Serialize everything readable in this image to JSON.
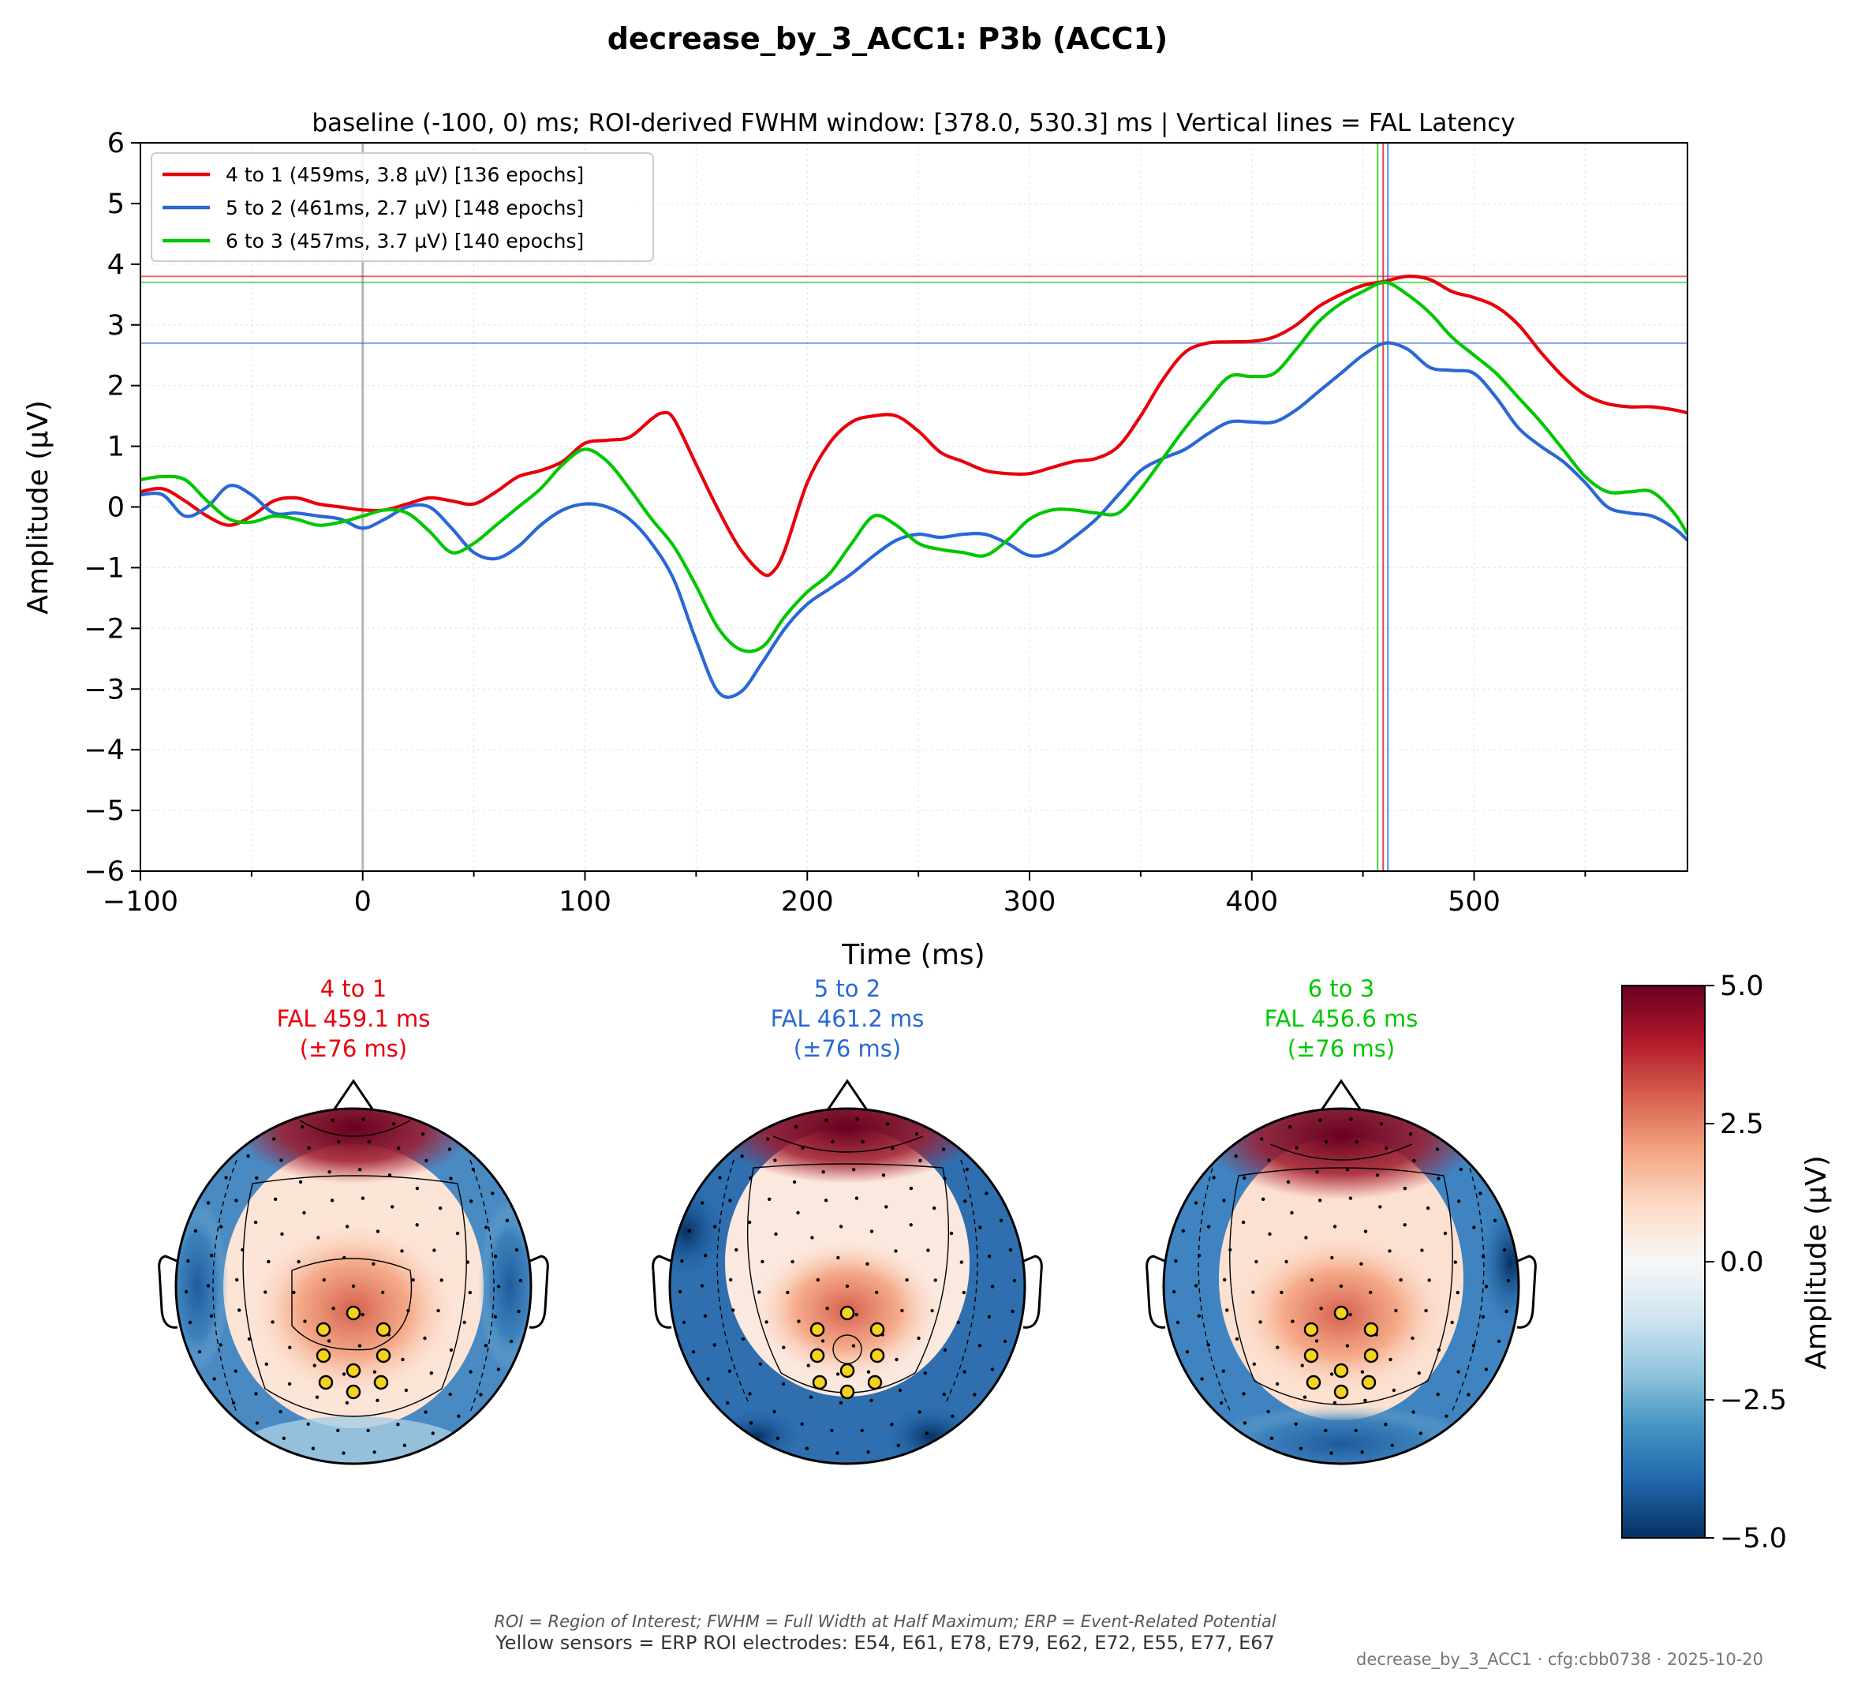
{
  "figure": {
    "suptitle": "decrease_by_3_ACC1: P3b (ACC1)",
    "footer_abbrev": "ROI = Region of Interest; FWHM = Full Width at Half Maximum; ERP = Event-Related Potential",
    "footer_roi": "Yellow sensors = ERP ROI electrodes: E54, E61, E78, E79, E62, E72, E55, E77, E67",
    "footer_meta": "decrease_by_3_ACC1 · cfg:cbb0738 · 2025-10-20"
  },
  "chart_data": [
    {
      "type": "line",
      "title": "baseline (-100, 0) ms; ROI-derived FWHM window: [378.0, 530.3] ms | Vertical lines = FAL Latency",
      "xlabel": "Time (ms)",
      "ylabel": "Amplitude (µV)",
      "xlim": [
        -100,
        596
      ],
      "ylim": [
        -6,
        6
      ],
      "xticks": [
        -100,
        0,
        100,
        200,
        300,
        400,
        500
      ],
      "xtick_labels": [
        "−100",
        "0",
        "100",
        "200",
        "300",
        "400",
        "500"
      ],
      "yticks": [
        -6,
        -5,
        -4,
        -3,
        -2,
        -1,
        0,
        1,
        2,
        3,
        4,
        5,
        6
      ],
      "ytick_labels": [
        "−6",
        "−5",
        "−4",
        "−3",
        "−2",
        "−1",
        "0",
        "1",
        "2",
        "3",
        "4",
        "5",
        "6"
      ],
      "grid": true,
      "legend_position": "upper-left",
      "baseline_marker_x": 0,
      "series": [
        {
          "name": "4 to 1 (459ms, 3.8 µV) [136 epochs]",
          "color": "#e8000b",
          "peak_latency": 459.1,
          "peak_amplitude": 3.8,
          "x": [
            -100,
            -90,
            -80,
            -70,
            -60,
            -50,
            -40,
            -30,
            -20,
            -10,
            0,
            10,
            20,
            30,
            40,
            50,
            60,
            70,
            80,
            90,
            100,
            110,
            120,
            130,
            135,
            140,
            150,
            160,
            170,
            180,
            185,
            190,
            200,
            210,
            220,
            230,
            240,
            250,
            260,
            270,
            280,
            290,
            300,
            310,
            320,
            330,
            340,
            350,
            360,
            370,
            380,
            390,
            400,
            410,
            420,
            430,
            440,
            450,
            460,
            470,
            480,
            490,
            500,
            510,
            520,
            530,
            540,
            550,
            560,
            570,
            580,
            590,
            596
          ],
          "y": [
            0.25,
            0.3,
            0.1,
            -0.15,
            -0.3,
            -0.15,
            0.1,
            0.15,
            0.05,
            0.0,
            -0.05,
            -0.05,
            0.05,
            0.15,
            0.1,
            0.05,
            0.25,
            0.5,
            0.6,
            0.75,
            1.05,
            1.1,
            1.15,
            1.45,
            1.55,
            1.45,
            0.7,
            -0.05,
            -0.7,
            -1.1,
            -1.05,
            -0.7,
            0.4,
            1.05,
            1.4,
            1.5,
            1.5,
            1.25,
            0.9,
            0.75,
            0.6,
            0.55,
            0.55,
            0.65,
            0.75,
            0.8,
            1.0,
            1.5,
            2.1,
            2.55,
            2.7,
            2.72,
            2.73,
            2.8,
            3.0,
            3.3,
            3.5,
            3.65,
            3.72,
            3.8,
            3.75,
            3.55,
            3.45,
            3.3,
            3.0,
            2.55,
            2.15,
            1.85,
            1.7,
            1.65,
            1.65,
            1.6,
            1.55
          ]
        },
        {
          "name": "5 to 2 (461ms, 2.7 µV) [148 epochs]",
          "color": "#2a67d7",
          "peak_latency": 461.2,
          "peak_amplitude": 2.7,
          "x": [
            -100,
            -90,
            -80,
            -70,
            -60,
            -50,
            -40,
            -30,
            -20,
            -10,
            0,
            10,
            20,
            30,
            40,
            50,
            60,
            70,
            80,
            90,
            100,
            110,
            120,
            130,
            140,
            150,
            160,
            170,
            180,
            190,
            200,
            210,
            220,
            230,
            240,
            250,
            260,
            270,
            280,
            290,
            300,
            310,
            320,
            330,
            340,
            350,
            360,
            370,
            380,
            390,
            400,
            410,
            420,
            430,
            440,
            450,
            460,
            470,
            480,
            490,
            500,
            510,
            520,
            530,
            540,
            550,
            560,
            570,
            580,
            590,
            596
          ],
          "y": [
            0.2,
            0.2,
            -0.15,
            0.0,
            0.35,
            0.2,
            -0.1,
            -0.1,
            -0.15,
            -0.2,
            -0.35,
            -0.2,
            0.0,
            0.0,
            -0.35,
            -0.75,
            -0.85,
            -0.65,
            -0.3,
            -0.05,
            0.05,
            0.0,
            -0.2,
            -0.6,
            -1.2,
            -2.2,
            -3.05,
            -3.05,
            -2.55,
            -2.0,
            -1.6,
            -1.35,
            -1.1,
            -0.8,
            -0.55,
            -0.45,
            -0.5,
            -0.45,
            -0.45,
            -0.6,
            -0.8,
            -0.75,
            -0.5,
            -0.2,
            0.2,
            0.6,
            0.8,
            0.95,
            1.2,
            1.4,
            1.4,
            1.4,
            1.6,
            1.9,
            2.2,
            2.5,
            2.7,
            2.6,
            2.3,
            2.25,
            2.2,
            1.8,
            1.3,
            1.0,
            0.75,
            0.4,
            0.0,
            -0.1,
            -0.15,
            -0.35,
            -0.55
          ]
        },
        {
          "name": "6 to 3 (457ms, 3.7 µV) [140 epochs]",
          "color": "#00c800",
          "peak_latency": 456.6,
          "peak_amplitude": 3.7,
          "x": [
            -100,
            -90,
            -80,
            -70,
            -60,
            -50,
            -40,
            -30,
            -20,
            -10,
            0,
            10,
            20,
            30,
            40,
            50,
            60,
            70,
            80,
            90,
            100,
            110,
            120,
            130,
            140,
            150,
            160,
            170,
            180,
            190,
            200,
            210,
            220,
            230,
            240,
            250,
            260,
            270,
            280,
            290,
            300,
            310,
            320,
            330,
            340,
            350,
            360,
            370,
            380,
            390,
            400,
            410,
            420,
            430,
            440,
            450,
            460,
            470,
            480,
            490,
            500,
            510,
            520,
            530,
            540,
            550,
            560,
            570,
            580,
            590,
            596
          ],
          "y": [
            0.45,
            0.5,
            0.45,
            0.1,
            -0.2,
            -0.25,
            -0.15,
            -0.2,
            -0.3,
            -0.25,
            -0.15,
            -0.05,
            -0.1,
            -0.4,
            -0.75,
            -0.6,
            -0.3,
            0.0,
            0.3,
            0.7,
            0.95,
            0.75,
            0.3,
            -0.2,
            -0.65,
            -1.3,
            -2.0,
            -2.35,
            -2.3,
            -1.8,
            -1.4,
            -1.1,
            -0.6,
            -0.15,
            -0.3,
            -0.6,
            -0.7,
            -0.75,
            -0.8,
            -0.55,
            -0.2,
            -0.05,
            -0.05,
            -0.1,
            -0.1,
            0.3,
            0.8,
            1.3,
            1.75,
            2.15,
            2.15,
            2.2,
            2.6,
            3.05,
            3.35,
            3.55,
            3.7,
            3.5,
            3.2,
            2.8,
            2.5,
            2.2,
            1.8,
            1.4,
            0.95,
            0.5,
            0.25,
            0.25,
            0.25,
            -0.1,
            -0.45
          ]
        }
      ]
    },
    {
      "type": "heatmap",
      "subtype": "topomap",
      "colorbar_label": "Amplitude (µV)",
      "colorbar_ticks": [
        5.0,
        2.5,
        0.0,
        -2.5,
        -5.0
      ],
      "colorbar_tick_labels": [
        "5.0",
        "2.5",
        "0.0",
        "−2.5",
        "−5.0"
      ],
      "colormap": [
        "#67001f",
        "#b2182b",
        "#d6604d",
        "#f4a582",
        "#fddbc7",
        "#f7f7f7",
        "#d1e5f0",
        "#92c5de",
        "#4393c3",
        "#2166ac",
        "#053061"
      ],
      "vmin": -5.0,
      "vmax": 5.0,
      "roi_sensor_color": "#f5d21e",
      "maps": [
        {
          "condition": "4 to 1",
          "title_line1": "4 to 1",
          "title_line2": "FAL 459.1 ms",
          "title_line3": "(±76 ms)",
          "color": "#e8000b",
          "latency_ms": 459.1,
          "window_ms": 76
        },
        {
          "condition": "5 to 2",
          "title_line1": "5 to 2",
          "title_line2": "FAL 461.2 ms",
          "title_line3": "(±76 ms)",
          "color": "#2a67d7",
          "latency_ms": 461.2,
          "window_ms": 76
        },
        {
          "condition": "6 to 3",
          "title_line1": "6 to 3",
          "title_line2": "FAL 456.6 ms",
          "title_line3": "(±76 ms)",
          "color": "#00c800",
          "latency_ms": 456.6,
          "window_ms": 76
        }
      ]
    }
  ]
}
